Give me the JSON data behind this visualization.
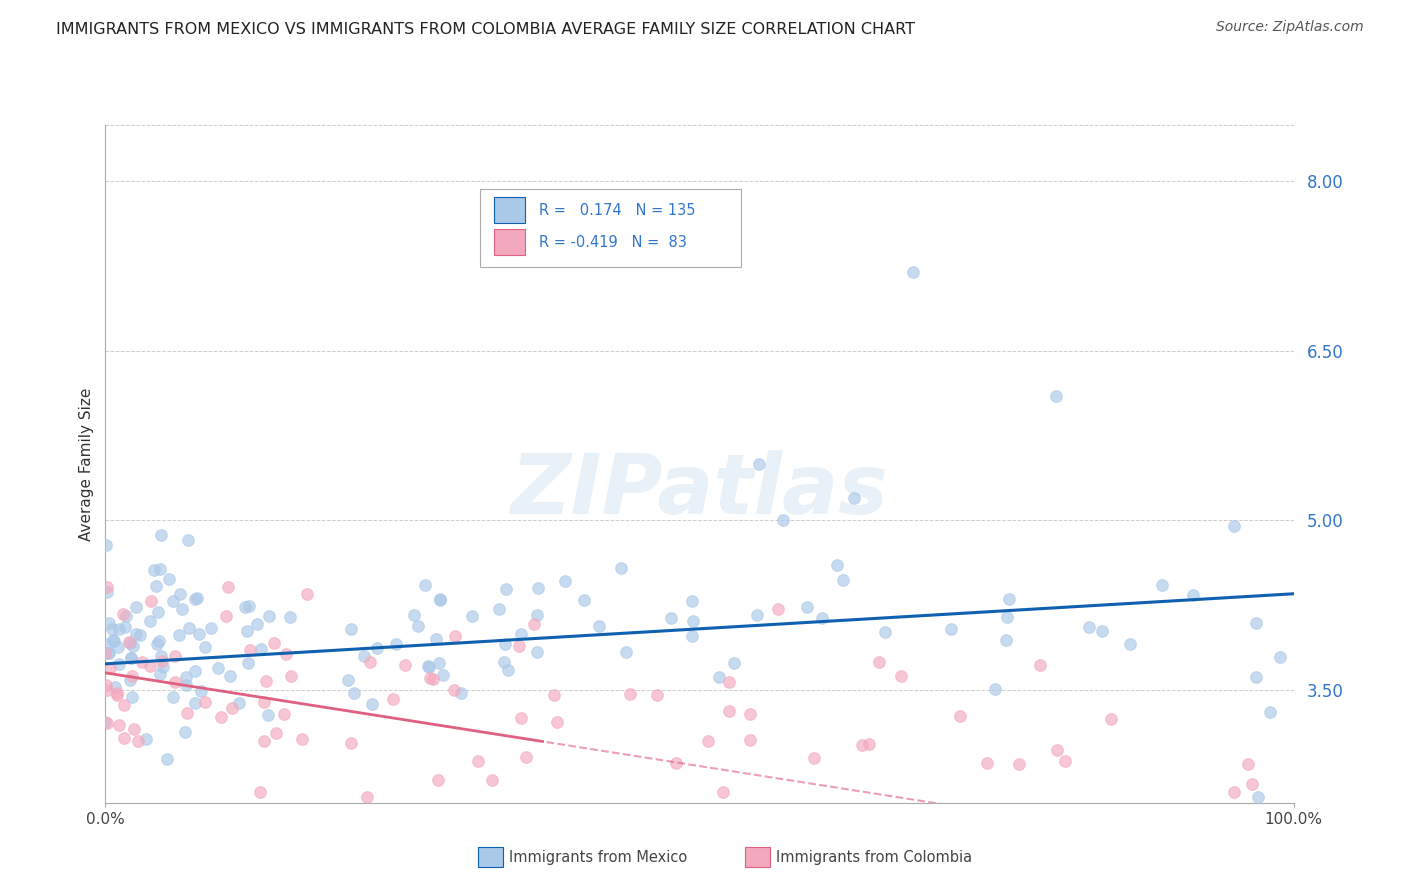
{
  "title": "IMMIGRANTS FROM MEXICO VS IMMIGRANTS FROM COLOMBIA AVERAGE FAMILY SIZE CORRELATION CHART",
  "source": "Source: ZipAtlas.com",
  "ylabel": "Average Family Size",
  "yticks_right": [
    3.5,
    5.0,
    6.5,
    8.0
  ],
  "ylim": [
    2.5,
    8.5
  ],
  "xlim": [
    0.0,
    100.0
  ],
  "mexico_R": 0.174,
  "mexico_N": 135,
  "colombia_R": -0.419,
  "colombia_N": 83,
  "mexico_color": "#aac8e8",
  "colombia_color": "#f4a8be",
  "mexico_line_color": "#1060b0",
  "colombia_line_color": "#e06080",
  "legend_mexico": "Immigrants from Mexico",
  "legend_colombia": "Immigrants from Colombia",
  "watermark": "ZIPatlas",
  "background_color": "#ffffff",
  "grid_color": "#cccccc",
  "title_color": "#222222",
  "axis_label_color": "#333333",
  "right_axis_color": "#3377cc"
}
